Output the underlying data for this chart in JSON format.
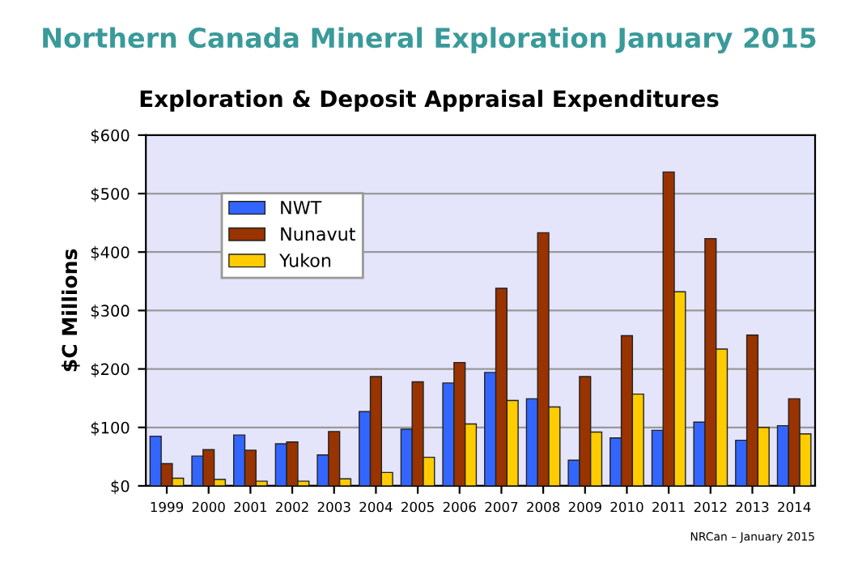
{
  "chart_data": {
    "type": "bar",
    "title": "Northern Canada Mineral Exploration January 2015",
    "subtitle": "Exploration & Deposit Appraisal Expenditures",
    "ylabel": "$C Millions",
    "categories": [
      "1999",
      "2000",
      "2001",
      "2002",
      "2003",
      "2004",
      "2005",
      "2006",
      "2007",
      "2008",
      "2009",
      "2010",
      "2011",
      "2012",
      "2013",
      "2014"
    ],
    "series": [
      {
        "name": "NWT",
        "color": "#3366ff",
        "values": [
          85,
          51,
          87,
          72,
          53,
          127,
          97,
          176,
          194,
          149,
          44,
          82,
          95,
          109,
          78,
          103
        ]
      },
      {
        "name": "Nunavut",
        "color": "#993300",
        "values": [
          38,
          62,
          61,
          75,
          93,
          187,
          178,
          211,
          338,
          433,
          187,
          257,
          537,
          423,
          258,
          149
        ]
      },
      {
        "name": "Yukon",
        "color": "#ffcc00",
        "values": [
          13,
          11,
          8,
          8,
          12,
          23,
          49,
          106,
          146,
          135,
          92,
          157,
          332,
          234,
          100,
          89
        ]
      }
    ],
    "ylim": [
      0,
      600
    ],
    "yticks": [
      {
        "value": 0,
        "label": "$0"
      },
      {
        "value": 100,
        "label": "$100"
      },
      {
        "value": 200,
        "label": "$200"
      },
      {
        "value": 300,
        "label": "$300"
      },
      {
        "value": 400,
        "label": "$400"
      },
      {
        "value": 500,
        "label": "$500"
      },
      {
        "value": 600,
        "label": "$600"
      }
    ],
    "grid": "y",
    "legend": "top left",
    "annotations": [
      "NRCan – January 2015"
    ]
  }
}
